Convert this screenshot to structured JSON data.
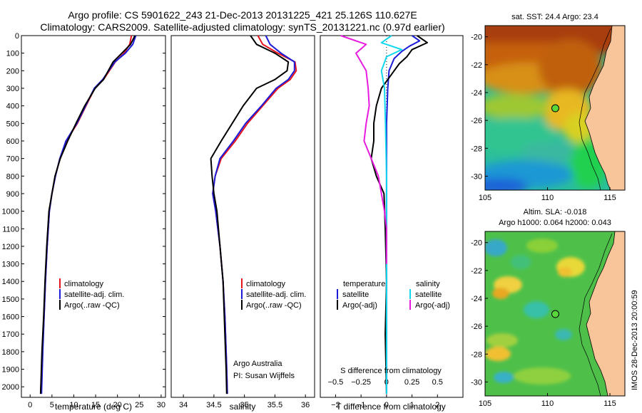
{
  "header": {
    "line1": "Argo profile: CS 5901622_243 21-Dec-2013 20131225_421 25.126S 110.627E",
    "line2": "Climatology: CARS2009. Satellite-adjusted climatology: synTS_20131221.nc (0.97d earlier)"
  },
  "colors": {
    "climatology": "#e8141c",
    "satellite": "#1c1cd8",
    "argo": "#000000",
    "sal_satellite": "#12d8ee",
    "sal_argo": "#e81ce0",
    "land": "#f8c49a"
  },
  "chart_data": [
    {
      "type": "line",
      "panel": "temperature",
      "xlabel": "temperature (deg C)",
      "ylabel": "",
      "xlim": [
        -2,
        31
      ],
      "ylim": [
        2060,
        0
      ],
      "xticks": [
        0,
        5,
        10,
        15,
        20,
        25,
        30
      ],
      "xtick_labels": [
        "0",
        "5",
        "10",
        "15",
        "20",
        "25",
        "30"
      ],
      "yticks": [
        0,
        100,
        200,
        300,
        400,
        500,
        600,
        700,
        800,
        900,
        1000,
        1100,
        1200,
        1300,
        1400,
        1500,
        1600,
        1700,
        1800,
        1900,
        2000
      ],
      "ytick_labels": [
        "0",
        "100",
        "200",
        "300",
        "400",
        "500",
        "600",
        "700",
        "800",
        "900",
        "1000",
        "1100",
        "1200",
        "1300",
        "1400",
        "1500",
        "1600",
        "1700",
        "1800",
        "1900",
        "2000"
      ],
      "legend": [
        "climatology",
        "satellite-adj. clim.",
        "Argo(..raw -QC)"
      ],
      "legend_position": "lower-center",
      "series": [
        {
          "name": "climatology",
          "color": "#e8141c",
          "x": [
            23.2,
            22.8,
            21.5,
            19.5,
            16.8,
            14.8,
            12.8,
            10.8,
            8.3,
            6.8,
            5.8,
            5.0,
            4.4,
            3.9,
            3.5,
            3.2,
            2.8,
            2.4
          ],
          "y": [
            0,
            50,
            100,
            150,
            250,
            300,
            400,
            500,
            600,
            700,
            800,
            900,
            1000,
            1200,
            1400,
            1600,
            1800,
            2040
          ]
        },
        {
          "name": "satellite-adj. clim.",
          "color": "#1c1cd8",
          "x": [
            24.2,
            23.5,
            21.8,
            19.4,
            16.6,
            14.7,
            12.7,
            10.7,
            8.2,
            6.8,
            5.8,
            5.0,
            4.4,
            3.9,
            3.5,
            3.2,
            2.9,
            2.6
          ],
          "y": [
            0,
            50,
            100,
            150,
            250,
            300,
            400,
            500,
            600,
            700,
            800,
            900,
            1000,
            1200,
            1400,
            1600,
            1800,
            2040
          ]
        },
        {
          "name": "Argo(..raw -QC)",
          "color": "#000000",
          "x": [
            24.0,
            23.0,
            21.0,
            19.0,
            16.8,
            14.9,
            12.5,
            10.5,
            8.6,
            6.9,
            5.7,
            5.0,
            4.3,
            3.8,
            3.4,
            3.1,
            2.7,
            2.4
          ],
          "y": [
            0,
            50,
            100,
            150,
            250,
            300,
            400,
            500,
            600,
            700,
            800,
            900,
            1000,
            1200,
            1400,
            1600,
            1800,
            2040
          ]
        }
      ]
    },
    {
      "type": "line",
      "panel": "salinity",
      "xlabel": "salinity",
      "ylabel": "",
      "xlim": [
        33.8,
        36.15
      ],
      "ylim": [
        2060,
        0
      ],
      "xticks": [
        34,
        34.5,
        35,
        35.5,
        36
      ],
      "xtick_labels": [
        "34",
        "34.5",
        "35",
        "35.5",
        "36"
      ],
      "legend": [
        "climatology",
        "satellite-adj. clim.",
        "Argo(..raw -QC)"
      ],
      "legend_position": "lower-right",
      "annotation": [
        "Argo Australia",
        "PI: Susan Wijffels"
      ],
      "series": [
        {
          "name": "climatology",
          "color": "#e8141c",
          "x": [
            35.22,
            35.3,
            35.55,
            35.83,
            35.85,
            35.75,
            35.55,
            35.3,
            35.05,
            34.85,
            34.62,
            34.52,
            34.48,
            34.53,
            34.6,
            34.65,
            34.68,
            34.7,
            34.71,
            34.72
          ],
          "y": [
            0,
            50,
            100,
            150,
            200,
            250,
            300,
            400,
            500,
            600,
            700,
            800,
            900,
            1000,
            1200,
            1400,
            1600,
            1800,
            1900,
            2040
          ]
        },
        {
          "name": "satellite-adj. clim.",
          "color": "#1c1cd8",
          "x": [
            35.35,
            35.42,
            35.6,
            35.82,
            35.82,
            35.72,
            35.52,
            35.28,
            35.02,
            34.82,
            34.6,
            34.52,
            34.48,
            34.53,
            34.6,
            34.65,
            34.68,
            34.7,
            34.71,
            34.72
          ],
          "y": [
            0,
            50,
            100,
            150,
            200,
            250,
            300,
            400,
            500,
            600,
            700,
            800,
            900,
            1000,
            1200,
            1400,
            1600,
            1800,
            1900,
            2040
          ]
        },
        {
          "name": "Argo(..raw -QC)",
          "color": "#000000",
          "x": [
            35.1,
            35.2,
            35.5,
            35.72,
            35.7,
            35.5,
            35.2,
            34.98,
            34.8,
            34.62,
            34.45,
            34.47,
            34.5,
            34.55,
            34.6,
            34.65,
            34.67,
            34.69,
            34.7,
            34.71
          ],
          "y": [
            0,
            50,
            100,
            150,
            200,
            250,
            300,
            400,
            500,
            600,
            700,
            800,
            900,
            1000,
            1200,
            1400,
            1600,
            1800,
            1900,
            2040
          ]
        }
      ]
    },
    {
      "type": "line",
      "panel": "difference",
      "xlabel": "T difference from climatology",
      "top_xlabel": "S difference from climatology",
      "xlim": [
        -2.6,
        3.0
      ],
      "ylim": [
        2060,
        0
      ],
      "xticks": [
        -2,
        -1,
        0,
        1,
        2
      ],
      "xtick_labels": [
        "−2",
        "−1",
        "0",
        "1",
        "2"
      ],
      "sticks": [
        -0.5,
        -0.25,
        0,
        0.25,
        0.5
      ],
      "stick_labels": [
        "−0.5",
        "−0.25",
        "0",
        "0.25",
        "0.5"
      ],
      "legend_t_title": "temperature",
      "legend_s_title": "salinity",
      "legend_t": [
        "satellite",
        "Argo(-adj)"
      ],
      "legend_s": [
        "satellite",
        "Argo(-adj)"
      ],
      "legend_position": "lower-center",
      "series": [
        {
          "name": "temperature satellite",
          "color": "#1c1cd8",
          "x": [
            1.0,
            1.3,
            0.9,
            0.6,
            0.3,
            0.1,
            0.05,
            0.0,
            0.0,
            0.0,
            0.0,
            0.0
          ],
          "y": [
            0,
            30,
            60,
            90,
            130,
            200,
            300,
            500,
            800,
            1200,
            1600,
            2040
          ]
        },
        {
          "name": "temperature Argo(-adj)",
          "color": "#000000",
          "x": [
            1.2,
            1.6,
            1.0,
            0.8,
            0.5,
            0.3,
            -0.2,
            -0.4,
            -0.5,
            -0.5,
            -0.6,
            -0.4,
            -0.1,
            -0.05,
            0.0,
            -0.05,
            0.0
          ],
          "y": [
            0,
            40,
            80,
            120,
            160,
            200,
            300,
            400,
            500,
            600,
            700,
            800,
            900,
            1100,
            1400,
            1700,
            2040
          ]
        },
        {
          "name": "salinity satellite",
          "color": "#12d8ee",
          "x": [
            0.05,
            -0.05,
            0.15,
            0.0,
            -0.05,
            -0.02,
            -0.01,
            0.0,
            0.0,
            0.0
          ],
          "y": [
            0,
            40,
            80,
            120,
            200,
            300,
            500,
            800,
            1200,
            2040
          ]
        },
        {
          "name": "salinity Argo(-adj)",
          "color": "#e81ce0",
          "x": [
            -0.45,
            -0.2,
            -0.3,
            -0.2,
            -0.18,
            -0.17,
            -0.2,
            -0.22,
            -0.15,
            -0.08,
            -0.05,
            -0.02,
            0.0,
            0.0
          ],
          "y": [
            0,
            50,
            100,
            200,
            300,
            400,
            500,
            600,
            700,
            800,
            900,
            1000,
            1100,
            1300
          ]
        }
      ]
    },
    {
      "type": "heatmap",
      "panel": "sst-map",
      "title": "sat. SST: 24.4  Argo: 23.4",
      "xlim": [
        105,
        116.2
      ],
      "ylim": [
        -31,
        -19.2
      ],
      "xticks": [
        105,
        110,
        115
      ],
      "xtick_labels": [
        "105",
        "110",
        "115"
      ],
      "yticks": [
        -20,
        -22,
        -24,
        -26,
        -28,
        -30
      ],
      "ytick_labels": [
        "-20",
        "-22",
        "-24",
        "-26",
        "-28",
        "-30"
      ],
      "marker": {
        "lon": 110.627,
        "lat": -25.126
      }
    },
    {
      "type": "heatmap",
      "panel": "sla-map",
      "title": "Altim. SLA: -0.018",
      "subtitle": "Argo h1000: 0.064 h2000: 0.043",
      "xlim": [
        105,
        116.2
      ],
      "ylim": [
        -31,
        -19.2
      ],
      "xticks": [
        105,
        110,
        115
      ],
      "xtick_labels": [
        "105",
        "110",
        "115"
      ],
      "yticks": [
        -20,
        -22,
        -24,
        -26,
        -28,
        -30
      ],
      "ytick_labels": [
        "-20",
        "-22",
        "-24",
        "-26",
        "-28",
        "-30"
      ],
      "marker": {
        "lon": 110.627,
        "lat": -25.126
      }
    }
  ],
  "watermark": "IMOS 28-Dec-2013 20:00:59"
}
